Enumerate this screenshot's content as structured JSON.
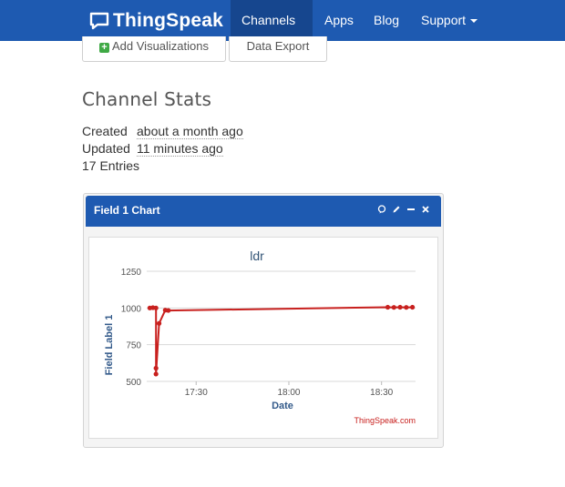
{
  "navbar": {
    "brand": "ThingSpeak",
    "items": [
      {
        "label": "Channels",
        "active": true,
        "dropdown": true
      },
      {
        "label": "Apps",
        "active": false,
        "dropdown": false
      },
      {
        "label": "Blog",
        "active": false,
        "dropdown": false
      },
      {
        "label": "Support",
        "active": false,
        "dropdown": true
      }
    ]
  },
  "actions": {
    "add_visualizations": "Add Visualizations",
    "data_export": "Data Export"
  },
  "stats": {
    "title": "Channel Stats",
    "created_label": "Created",
    "created_value": "about a month ago",
    "updated_label": "Updated",
    "updated_value": "11 minutes ago",
    "entries": "17 Entries"
  },
  "panel": {
    "title": "Field 1 Chart",
    "icons": [
      "comment-icon",
      "pencil-icon",
      "minimize-icon",
      "close-icon"
    ]
  },
  "chart_data": {
    "type": "line",
    "title": "ldr",
    "xlabel": "Date",
    "ylabel": "Field Label 1",
    "credit": "ThingSpeak.com",
    "ylim": [
      500,
      1250
    ],
    "yticks": [
      500,
      750,
      1000,
      1250
    ],
    "xlim": [
      "17:14",
      "18:41"
    ],
    "xticks": [
      "17:30",
      "18:00",
      "18:30"
    ],
    "grid": true,
    "series_color": "#c8201e",
    "series": [
      {
        "x": [
          "17:15",
          "17:16",
          "17:17",
          "17:17",
          "17:17",
          "17:18",
          "17:20",
          "17:21",
          "18:32",
          "18:34",
          "18:36",
          "18:38",
          "18:40"
        ],
        "y": [
          1000,
          1002,
          1000,
          590,
          550,
          895,
          985,
          983,
          1005,
          1004,
          1005,
          1004,
          1005
        ]
      }
    ]
  }
}
